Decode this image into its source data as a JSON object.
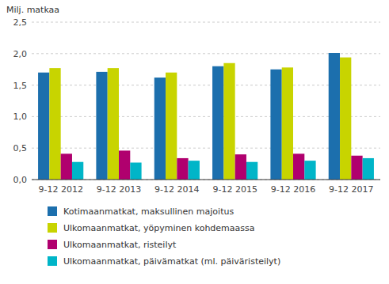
{
  "chart_data": {
    "type": "bar",
    "y_label": "Milj. matkaa",
    "categories": [
      "9-12 2012",
      "9-12 2013",
      "9-12 2014",
      "9-12 2015",
      "9-12 2016",
      "9-12 2017"
    ],
    "series": [
      {
        "name": "Kotimaanmatkat, maksullinen majoitus",
        "color": "#1c6fad",
        "values": [
          1.7,
          1.71,
          1.62,
          1.8,
          1.75,
          2.01
        ]
      },
      {
        "name": "Ulkomaanmatkat, yöpyminen kohdemaassa",
        "color": "#c8d400",
        "values": [
          1.77,
          1.77,
          1.7,
          1.85,
          1.78,
          1.94
        ]
      },
      {
        "name": "Ulkomaanmatkat, risteilyt",
        "color": "#b0006e",
        "values": [
          0.41,
          0.46,
          0.34,
          0.4,
          0.41,
          0.38
        ]
      },
      {
        "name": "Ulkomaanmatkat, päivämatkat (ml. päiväristeilyt)",
        "color": "#00b5c8",
        "values": [
          0.28,
          0.27,
          0.3,
          0.28,
          0.3,
          0.34
        ]
      }
    ],
    "ylim": [
      0,
      2.5
    ],
    "yticks": [
      {
        "value": 0.0,
        "label": "0,0"
      },
      {
        "value": 0.5,
        "label": "0,5"
      },
      {
        "value": 1.0,
        "label": "1,0"
      },
      {
        "value": 1.5,
        "label": "1,5"
      },
      {
        "value": 2.0,
        "label": "2,0"
      },
      {
        "value": 2.5,
        "label": "2,5"
      }
    ],
    "grid": true,
    "legend": "bottom"
  }
}
